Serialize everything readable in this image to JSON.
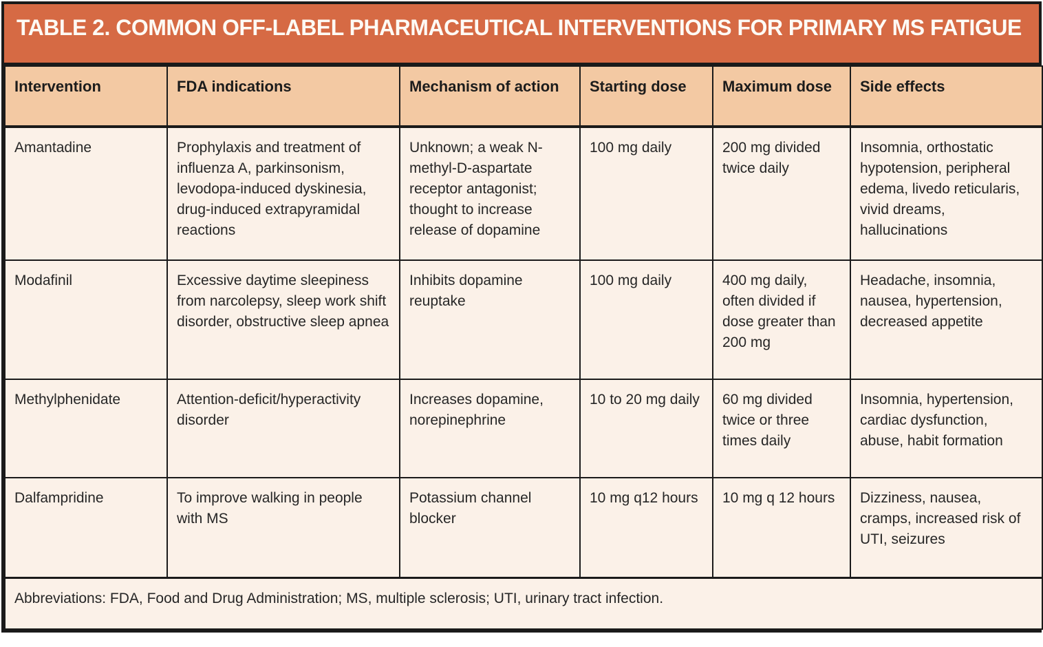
{
  "table": {
    "title": "TABLE 2. COMMON OFF-LABEL PHARMACEUTICAL INTERVENTIONS FOR PRIMARY MS FATIGUE",
    "columns": [
      "Intervention",
      "FDA indications",
      "Mechanism of action",
      "Starting dose",
      "Maximum dose",
      "Side effects"
    ],
    "rows": [
      [
        "Amantadine",
        "Prophylaxis and treatment of influenza A, parkinsonism, levodopa-induced dyskinesia, drug-induced extrapyramidal reactions",
        "Unknown; a weak N-methyl-D-aspartate receptor antagonist; thought to increase release of dopamine",
        "100 mg daily",
        "200 mg divided twice daily",
        "Insomnia, orthostatic hypotension, peripheral edema, livedo reticularis, vivid dreams, hallucinations"
      ],
      [
        "Modafinil",
        "Excessive daytime sleepiness from narcolepsy, sleep work shift disorder, obstructive sleep apnea",
        "Inhibits dopamine reuptake",
        "100 mg daily",
        "400 mg daily, often divided if dose greater than 200 mg",
        "Headache, insomnia, nausea, hypertension, decreased appetite"
      ],
      [
        "Methylphenidate",
        "Attention-deficit/hyperactivity disorder",
        "Increases dopamine, norepinephrine",
        "10 to 20 mg daily",
        "60 mg divided twice or three times daily",
        "Insomnia, hypertension, cardiac dysfunction, abuse, habit formation"
      ],
      [
        "Dalfampridine",
        "To improve walking in people with MS",
        "Potassium channel blocker",
        "10 mg q12 hours",
        "10 mg q 12 hours",
        "Dizziness, nausea, cramps, increased risk of UTI, seizures"
      ]
    ],
    "footnote": "Abbreviations: FDA, Food and Drug Administration; MS, multiple sclerosis; UTI, urinary tract infection."
  },
  "colors": {
    "title_bg": "#D66A44",
    "title_text": "#FDFAF5",
    "header_bg": "#F3C9A3",
    "row_bg": "#FBF1E8",
    "footer_bg": "#FFFFFF",
    "border": "#1A1A1A",
    "body_text": "#262626"
  }
}
